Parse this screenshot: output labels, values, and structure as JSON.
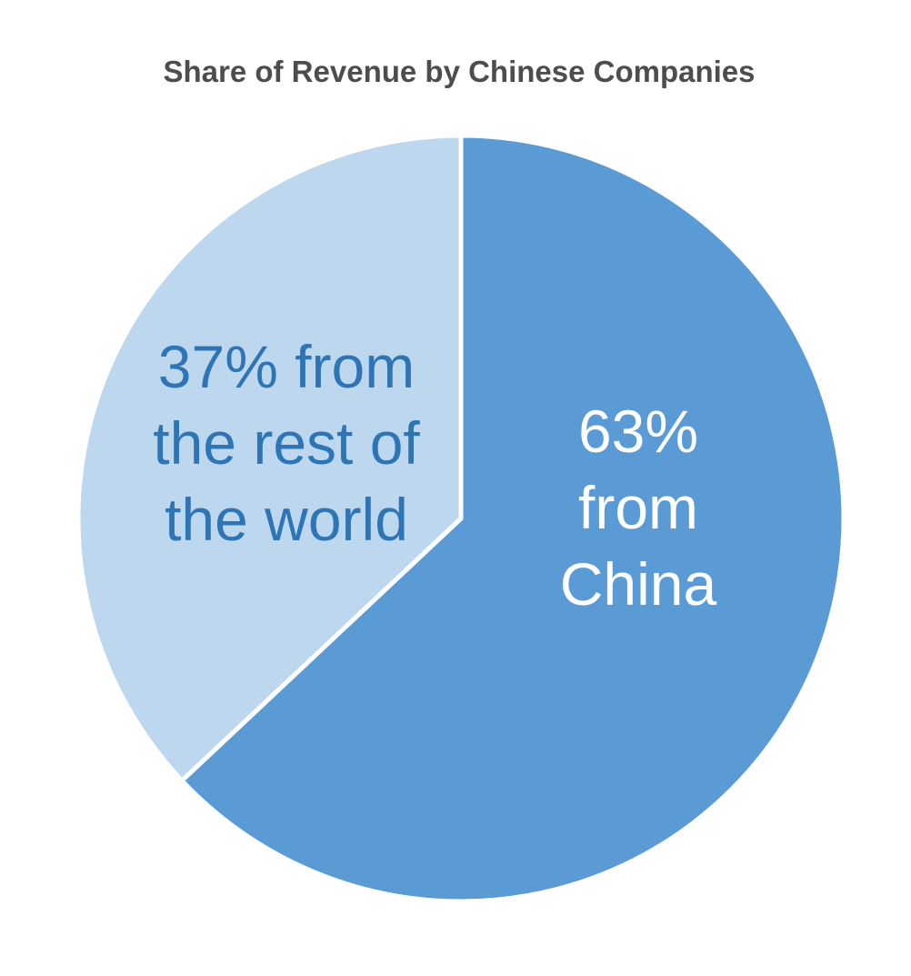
{
  "chart_data": {
    "type": "pie",
    "title": "Share of Revenue by Chinese Companies",
    "title_color": "#4D4D4D",
    "start_angle_deg": 0,
    "direction": "clockwise",
    "legend_position": "none",
    "divider_color": "#FFFFFF",
    "slices": [
      {
        "name": "From China",
        "value": 63,
        "unit": "%",
        "color": "#5B9BD5",
        "label_lines": [
          "63%",
          "from",
          "China"
        ],
        "label_color": "#FFFFFF"
      },
      {
        "name": "From the rest of the world",
        "value": 37,
        "unit": "%",
        "color": "#BDD7EE",
        "label_lines": [
          "37% from",
          "the rest of",
          "the world"
        ],
        "label_color": "#2E75B6"
      }
    ]
  }
}
